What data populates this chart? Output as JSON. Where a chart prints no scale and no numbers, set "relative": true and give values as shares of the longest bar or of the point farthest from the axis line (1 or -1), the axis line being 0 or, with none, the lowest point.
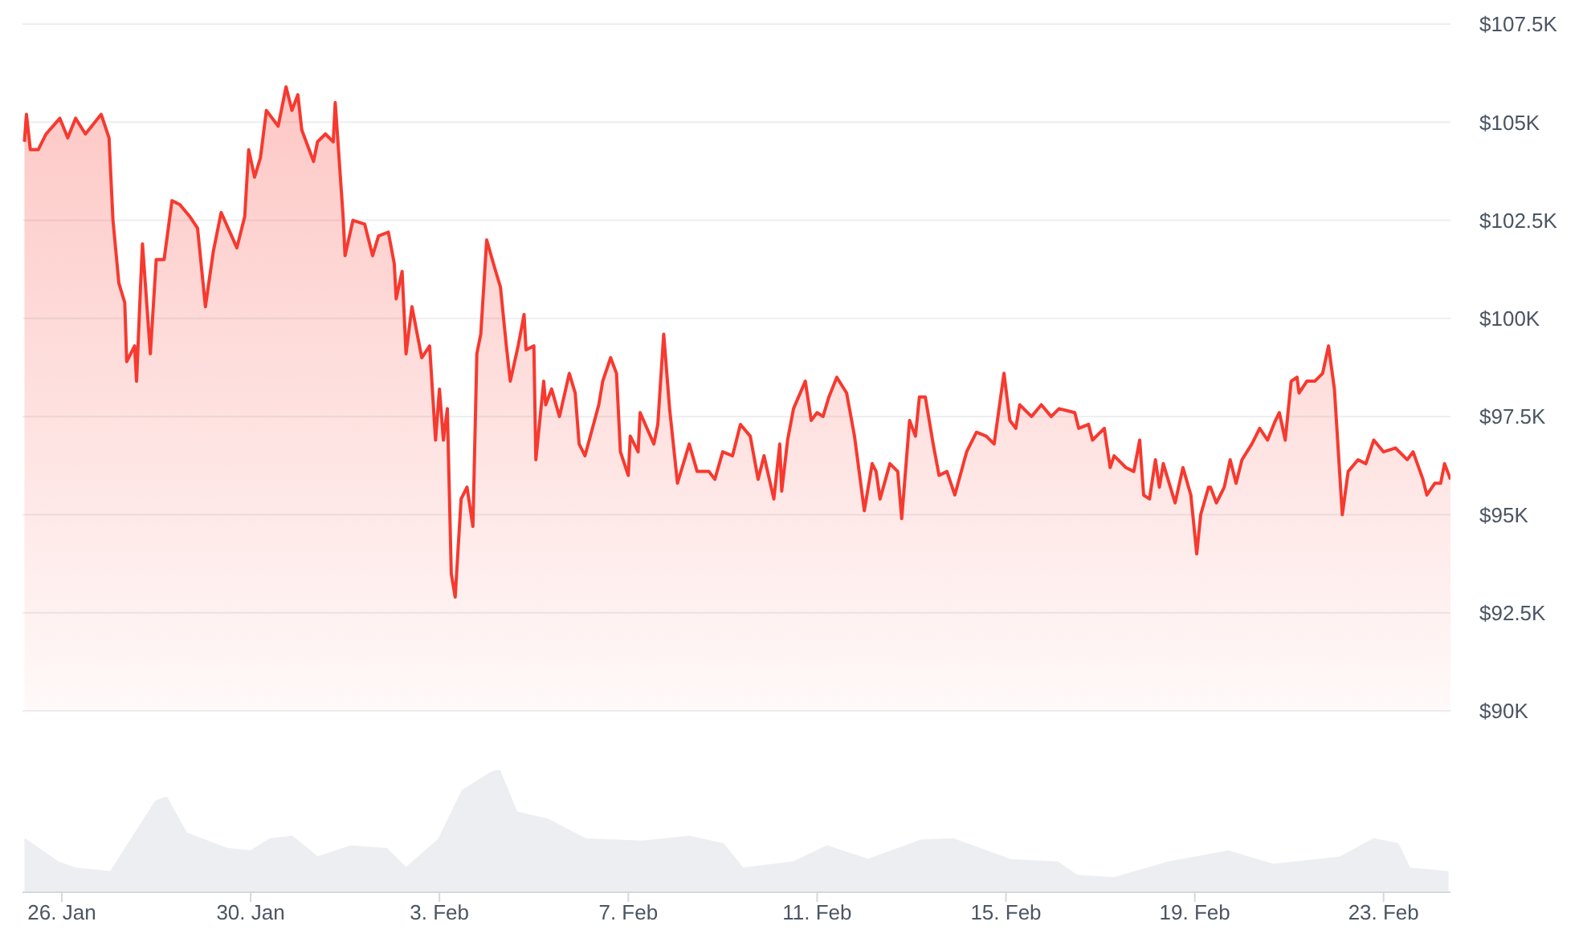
{
  "chart_data": [
    {
      "type": "area",
      "x": [
        "--01-25T05:00",
        "--01-25T06:00",
        "--01-25T08:00",
        "--01-25T12:00",
        "--01-25T16:00",
        "--01-25T23:00",
        "--01-26T03:00",
        "--01-26T07:00",
        "--01-26T12:00",
        "--01-26T20:00",
        "--01-27T00:00",
        "--01-27T02:00",
        "--01-27T05:00",
        "--01-27T08:00",
        "--01-27T09:00",
        "--01-27T13:00",
        "--01-27T14:00",
        "--01-27T16:00",
        "--01-27T17:00",
        "--01-27T21:00",
        "--01-28T00:00",
        "--01-28T04:00",
        "--01-28T08:00",
        "--01-28T12:00",
        "--01-28T17:00",
        "--01-28T21:00",
        "--01-29T01:00",
        "--01-29T05:00",
        "--01-29T09:00",
        "--01-29T17:00",
        "--01-29T21:00",
        "--01-29T23:00",
        "--01-30T02:00",
        "--01-30T05:00",
        "--01-30T08:00",
        "--01-30T14:00",
        "--01-30T18:00",
        "--01-30T21:00",
        "--01-31T00:00",
        "--01-31T02:00",
        "--01-31T08:00",
        "--01-31T10:00",
        "--01-31T14:00",
        "--01-31T18:00",
        "--01-31T19:00",
        "--01-31T23:00",
        "--02-01T00:00",
        "--02-01T04:00",
        "--02-01T10:00",
        "--02-01T14:00",
        "--02-01T17:00",
        "--02-01T22:00",
        "--02-02T01:00",
        "--02-02T02:00",
        "--02-02T05:00",
        "--02-02T07:00",
        "--02-02T10:00",
        "--02-02T15:00",
        "--02-02T19:00",
        "--02-02T22:00",
        "--02-03T00:00",
        "--02-03T02:00",
        "--02-03T04:00",
        "--02-03T06:00",
        "--02-03T08:00",
        "--02-03T11:00",
        "--02-03T14:00",
        "--02-03T17:00",
        "--02-03T19:00",
        "--02-03T21:00",
        "--02-04T00:00",
        "--02-04T04:00",
        "--02-04T07:00",
        "--02-04T10:00",
        "--02-04T12:00",
        "--02-04T16:00",
        "--02-04T19:00",
        "--02-04T20:00",
        "--02-05T00:00",
        "--02-05T01:00",
        "--02-05T05:00",
        "--02-05T06:00",
        "--02-05T09:00",
        "--02-05T13:00",
        "--02-05T18:00",
        "--02-05T21:00",
        "--02-05T23:00",
        "--02-06T02:00",
        "--02-06T09:00",
        "--02-06T11:00",
        "--02-06T15:00",
        "--02-06T18:00",
        "--02-06T20:00",
        "--02-07T00:00",
        "--02-07T01:00",
        "--02-07T05:00",
        "--02-07T06:00",
        "--02-07T13:00",
        "--02-07T15:00",
        "--02-07T18:00",
        "--02-07T21:00",
        "--02-08T01:00",
        "--02-08T07:00",
        "--02-08T11:00",
        "--02-08T17:00",
        "--02-08T20:00",
        "--02-09T00:00",
        "--02-09T05:00",
        "--02-09T09:00",
        "--02-09T14:00",
        "--02-09T18:00",
        "--02-09T21:00",
        "--02-10T02:00",
        "--02-10T05:00",
        "--02-10T06:00",
        "--02-10T09:00",
        "--02-10T12:00",
        "--02-10T18:00",
        "--02-10T21:00",
        "--02-11T00:00",
        "--02-11T03:00",
        "--02-11T06:00",
        "--02-11T10:00",
        "--02-11T15:00",
        "--02-11T19:00",
        "--02-12T00:00",
        "--02-12T04:00",
        "--02-12T06:00",
        "--02-12T08:00",
        "--02-12T13:00",
        "--02-12T17:00",
        "--02-12T19:00",
        "--02-12T23:00",
        "--02-13T02:00",
        "--02-13T04:00",
        "--02-13T07:00",
        "--02-13T11:00",
        "--02-13T14:00",
        "--02-13T18:00",
        "--02-13T22:00",
        "--02-14T04:00",
        "--02-14T09:00",
        "--02-14T14:00",
        "--02-14T18:00",
        "--02-14T23:00",
        "--02-15T02:00",
        "--02-15T05:00",
        "--02-15T07:00",
        "--02-15T13:00",
        "--02-15T18:00",
        "--02-15T23:00",
        "--02-16T03:00",
        "--02-16T11:00",
        "--02-16T13:00",
        "--02-16T18:00",
        "--02-16T20:00",
        "--02-17T02:00",
        "--02-17T05:00",
        "--02-17T07:00",
        "--02-17T13:00",
        "--02-17T17:00",
        "--02-17T20:00",
        "--02-17T22:00",
        "--02-18T01:00",
        "--02-18T04:00",
        "--02-18T06:00",
        "--02-18T08:00",
        "--02-18T14:00",
        "--02-18T18:00",
        "--02-18T22:00",
        "--02-19T01:00",
        "--02-19T03:00",
        "--02-19T07:00",
        "--02-19T08:00",
        "--02-19T11:00",
        "--02-19T15:00",
        "--02-19T18:00",
        "--02-19T21:00",
        "--02-20T00:00",
        "--02-20T05:00",
        "--02-20T09:00",
        "--02-20T13:00",
        "--02-20T17:00",
        "--02-20T19:00",
        "--02-20T22:00",
        "--02-21T01:00",
        "--02-21T04:00",
        "--02-21T05:00",
        "--02-21T09:00",
        "--02-21T13:00",
        "--02-21T17:00",
        "--02-21T20:00",
        "--02-21T23:00",
        "--02-22T03:00",
        "--02-22T06:00",
        "--02-22T11:00",
        "--02-22T15:00",
        "--02-22T19:00",
        "--02-23T00:00",
        "--02-23T06:00",
        "--02-23T12:00",
        "--02-23T15:00",
        "--02-23T20:00",
        "--02-23T22:00",
        "--02-24T02:00",
        "--02-24T05:00",
        "--02-24T07:00",
        "--02-24T10:00"
      ],
      "series": [
        {
          "color": "#f7392f",
          "values": [
            104500,
            105200,
            104300,
            104300,
            104700,
            105100,
            104600,
            105100,
            104700,
            105200,
            104600,
            102500,
            100900,
            100400,
            98900,
            99300,
            98400,
            100800,
            101900,
            99100,
            101500,
            101500,
            103000,
            102900,
            102600,
            102300,
            100300,
            101700,
            102700,
            101800,
            102600,
            104300,
            103600,
            104100,
            105300,
            104900,
            105900,
            105300,
            105700,
            104800,
            104000,
            104500,
            104700,
            104500,
            105500,
            102600,
            101600,
            102500,
            102400,
            101600,
            102100,
            102200,
            101400,
            100500,
            101200,
            99100,
            100300,
            99000,
            99300,
            96900,
            98200,
            96900,
            97700,
            93500,
            92900,
            95400,
            95700,
            94700,
            99100,
            99600,
            102000,
            101300,
            100800,
            99300,
            98400,
            99300,
            100100,
            99200,
            99300,
            96400,
            98400,
            97800,
            98200,
            97500,
            98600,
            98100,
            96800,
            96500,
            97800,
            98400,
            99000,
            98600,
            96600,
            96000,
            97000,
            96600,
            97600,
            96800,
            97300,
            99600,
            97700,
            95800,
            96800,
            96100,
            96100,
            95900,
            96600,
            96500,
            97300,
            97000,
            95900,
            96500,
            95400,
            96800,
            95600,
            96900,
            97700,
            98400,
            97400,
            97600,
            97500,
            98000,
            98500,
            98100,
            97000,
            95100,
            96300,
            96100,
            95400,
            96300,
            96100,
            94900,
            97400,
            97000,
            98000,
            98000,
            96800,
            96000,
            96100,
            95500,
            96600,
            97100,
            97000,
            96800,
            98600,
            97400,
            97200,
            97800,
            97500,
            97800,
            97500,
            97700,
            97600,
            97200,
            97300,
            96900,
            97200,
            96200,
            96500,
            96200,
            96100,
            96900,
            95500,
            95400,
            96400,
            95700,
            96300,
            95300,
            96200,
            95500,
            94000,
            95000,
            95700,
            95700,
            95300,
            95700,
            96400,
            95800,
            96400,
            96800,
            97200,
            96900,
            97400,
            97600,
            96900,
            98400,
            98500,
            98100,
            98400,
            98400,
            98600,
            99300,
            98200,
            95000,
            96100,
            96400,
            96300,
            96900,
            96600,
            96700,
            96400,
            96600,
            95900,
            95500,
            95800,
            95800,
            96300,
            95900
          ]
        }
      ],
      "xlim": [
        "--01-25T04:00",
        "--02-24T10:00"
      ],
      "ylim": [
        90000,
        107500
      ],
      "yticks": [
        {
          "value": 90000,
          "label": "$90K"
        },
        {
          "value": 92500,
          "label": "$92.5K"
        },
        {
          "value": 95000,
          "label": "$95K"
        },
        {
          "value": 97500,
          "label": "$97.5K"
        },
        {
          "value": 100000,
          "label": "$100K"
        },
        {
          "value": 102500,
          "label": "$102.5K"
        },
        {
          "value": 105000,
          "label": "$105K"
        },
        {
          "value": 107500,
          "label": "$107.5K"
        }
      ],
      "grid": "y",
      "marker": "none",
      "line_style": "solid",
      "tick_labels": "y"
    },
    {
      "type": "area",
      "relative": true,
      "x": [
        "--01-25T05:00",
        "--01-25T22:00",
        "--01-26T07:00",
        "--01-27T01:00",
        "--01-28T00:00",
        "--01-28T05:00",
        "--01-28T15:00",
        "--01-29T12:00",
        "--01-30T00:00",
        "--01-30T10:00",
        "--01-30T21:00",
        "--01-31T10:00",
        "--02-01T03:00",
        "--02-01T21:00",
        "--02-02T07:00",
        "--02-03T00:00",
        "--02-03T12:00",
        "--02-04T02:00",
        "--02-04T06:00",
        "--02-04T15:00",
        "--02-05T07:00",
        "--02-06T02:00",
        "--02-07T07:00",
        "--02-08T07:00",
        "--02-09T00:00",
        "--02-09T10:00",
        "--02-10T12:00",
        "--02-11T05:00",
        "--02-12T02:00",
        "--02-13T05:00",
        "--02-13T21:00",
        "--02-15T02:00",
        "--02-16T02:00",
        "--02-16T12:00",
        "--02-17T07:00",
        "--02-18T11:00",
        "--02-19T17:00",
        "--02-20T16:00",
        "--02-22T02:00",
        "--02-22T19:00",
        "--02-23T07:00",
        "--02-23T13:00",
        "--02-24T09:00"
      ],
      "series": [
        {
          "color": "#eceef1",
          "values": [
            0.43,
            0.24,
            0.19,
            0.16,
            0.74,
            0.77,
            0.48,
            0.35,
            0.33,
            0.43,
            0.45,
            0.28,
            0.37,
            0.35,
            0.19,
            0.43,
            0.83,
            0.97,
            1,
            0.65,
            0.59,
            0.43,
            0.41,
            0.45,
            0.39,
            0.19,
            0.24,
            0.37,
            0.26,
            0.42,
            0.43,
            0.26,
            0.24,
            0.13,
            0.11,
            0.24,
            0.33,
            0.22,
            0.28,
            0.43,
            0.39,
            0.19,
            0.16
          ]
        }
      ],
      "xlim": [
        "--01-25T04:00",
        "--02-24T10:00"
      ],
      "xticks": [
        {
          "value": "--01-26",
          "label": "26. Jan"
        },
        {
          "value": "--01-30",
          "label": "30. Jan"
        },
        {
          "value": "--02-03",
          "label": "3. Feb"
        },
        {
          "value": "--02-07",
          "label": "7. Feb"
        },
        {
          "value": "--02-11",
          "label": "11. Feb"
        },
        {
          "value": "--02-15",
          "label": "15. Feb"
        },
        {
          "value": "--02-19",
          "label": "19. Feb"
        },
        {
          "value": "--02-23",
          "label": "23. Feb"
        }
      ],
      "marker": "none",
      "line_style": "solid",
      "tick_labels": "x"
    }
  ]
}
